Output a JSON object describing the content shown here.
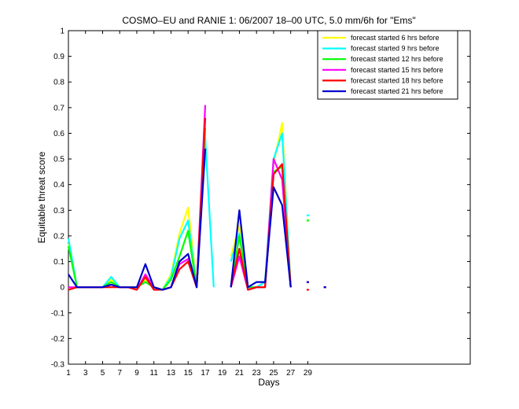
{
  "chart_data": {
    "type": "line",
    "title": "COSMO–EU and RANIE 1: 06/2007 18–00 UTC, 5.0 mm/6h for \"Ems\"",
    "xlabel": "Days",
    "ylabel": "Equitable threat score",
    "xlim": [
      1,
      48
    ],
    "ylim": [
      -0.3,
      1
    ],
    "xticks": [
      1,
      3,
      5,
      7,
      9,
      11,
      13,
      15,
      17,
      19,
      21,
      23,
      25,
      27,
      29
    ],
    "yticks": [
      -0.3,
      -0.2,
      -0.1,
      0,
      0.1,
      0.2,
      0.3,
      0.4,
      0.5,
      0.6,
      0.7,
      0.8,
      0.9,
      1
    ],
    "ytick_labels": [
      "-0.3",
      "-0.2",
      "-0.1",
      "0",
      "0.1",
      "0.2",
      "0.3",
      "0.4",
      "0.5",
      "0.6",
      "0.7",
      "0.8",
      "0.9",
      "1"
    ],
    "legend_position": "top-right",
    "grid": false,
    "x": [
      1,
      2,
      3,
      4,
      5,
      6,
      7,
      8,
      9,
      10,
      11,
      12,
      13,
      14,
      15,
      16,
      17,
      18,
      19,
      20,
      21,
      22,
      23,
      24,
      25,
      26,
      27,
      28,
      29,
      30,
      31
    ],
    "series": [
      {
        "name": "forecast started 6 hrs before",
        "color": "#ffff00",
        "values": [
          0.17,
          0.0,
          0.0,
          0.0,
          0.0,
          0.03,
          0.0,
          0.0,
          0.0,
          0.03,
          0.0,
          -0.01,
          0.05,
          0.21,
          0.31,
          0.0,
          0.6,
          null,
          null,
          0.12,
          0.24,
          0.0,
          0.0,
          0.02,
          0.48,
          0.64,
          0.0,
          null,
          0.26,
          null,
          null
        ]
      },
      {
        "name": "forecast started 9 hrs before",
        "color": "#00ffff",
        "values": [
          0.19,
          0.0,
          0.0,
          0.0,
          0.0,
          0.04,
          0.0,
          0.0,
          0.0,
          0.04,
          0.0,
          -0.01,
          0.04,
          0.19,
          0.26,
          0.0,
          0.58,
          0.0,
          null,
          0.1,
          0.21,
          0.0,
          0.0,
          0.02,
          0.5,
          0.6,
          0.0,
          null,
          0.28,
          null,
          null
        ]
      },
      {
        "name": "forecast started 12 hrs before",
        "color": "#00ff00",
        "values": [
          0.16,
          0.0,
          0.0,
          0.0,
          0.0,
          0.02,
          0.0,
          0.0,
          0.0,
          0.02,
          0.0,
          -0.01,
          0.03,
          0.12,
          0.22,
          0.0,
          0.62,
          null,
          null,
          0.0,
          0.2,
          0.0,
          0.0,
          0.0,
          0.45,
          0.47,
          0.0,
          null,
          0.26,
          null,
          null
        ]
      },
      {
        "name": "forecast started 15 hrs before",
        "color": "#ff00ff",
        "values": [
          0.0,
          0.0,
          0.0,
          0.0,
          0.0,
          0.01,
          0.0,
          0.0,
          -0.01,
          0.05,
          0.0,
          -0.01,
          0.0,
          0.09,
          0.11,
          0.0,
          0.71,
          null,
          null,
          0.0,
          0.12,
          -0.01,
          0.0,
          0.0,
          0.5,
          0.42,
          0.0,
          null,
          0.02,
          null,
          0.0
        ]
      },
      {
        "name": "forecast started 18 hrs before",
        "color": "#ff0000",
        "values": [
          -0.01,
          0.0,
          0.0,
          0.0,
          0.0,
          0.0,
          0.0,
          0.0,
          -0.01,
          0.04,
          -0.01,
          -0.01,
          0.0,
          0.07,
          0.1,
          0.0,
          0.66,
          null,
          null,
          0.0,
          0.15,
          -0.01,
          0.0,
          0.0,
          0.44,
          0.48,
          0.0,
          null,
          -0.01,
          null,
          0.0
        ]
      },
      {
        "name": "forecast started 21 hrs before",
        "color": "#0000cc",
        "values": [
          0.05,
          0.0,
          0.0,
          0.0,
          0.0,
          0.01,
          0.0,
          0.0,
          0.0,
          0.09,
          0.0,
          -0.01,
          0.0,
          0.1,
          0.13,
          0.0,
          0.54,
          null,
          null,
          0.0,
          0.3,
          0.0,
          0.02,
          0.02,
          0.39,
          0.32,
          0.0,
          null,
          0.02,
          null,
          0.0
        ]
      }
    ]
  }
}
